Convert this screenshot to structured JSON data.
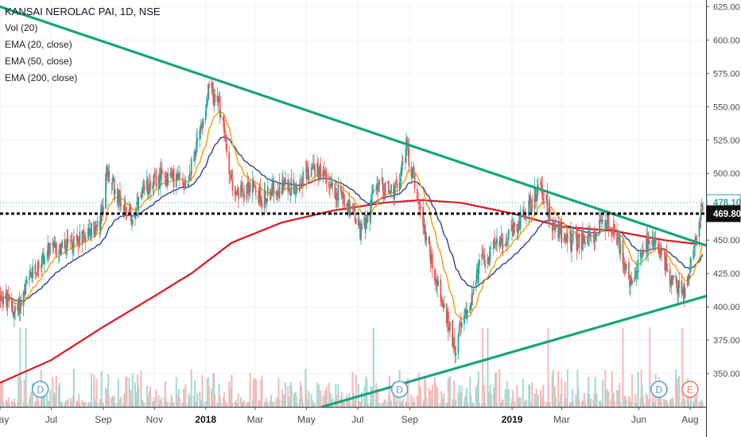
{
  "legend": {
    "title": "KANSAI NEROLAC PAI, 1D, NSE",
    "studies": [
      "Vol (20)",
      "EMA (20, close)",
      "EMA (50, close)",
      "EMA (200, close)"
    ]
  },
  "colors": {
    "up": "#26a69a",
    "down": "#ef5350",
    "vol_up": "#a7d8d2",
    "vol_down": "#f5b8b6",
    "ema20": "#f59b00",
    "ema50": "#2e3f8f",
    "ema200": "#e0141e",
    "trendline": "#17a57b",
    "grid": "#eef0f3",
    "axis_text": "#4a4a4a",
    "last_price_bg": "#ffffff",
    "horizontal_line": "#000000"
  },
  "chart_data": {
    "type": "candlestick",
    "y_axis": {
      "min": 325,
      "max": 630,
      "ticks": [
        "625.00",
        "600.00",
        "575.00",
        "550.00",
        "525.00",
        "500.00",
        "475.00",
        "450.00",
        "425.00",
        "400.00",
        "375.00",
        "350.00"
      ]
    },
    "x_axis": {
      "start": "2017-05-01",
      "end": "2019-08-20",
      "ticks": [
        {
          "date": "2017-05-01",
          "label": "May",
          "bold": false
        },
        {
          "date": "2017-07-01",
          "label": "Jul",
          "bold": false
        },
        {
          "date": "2017-09-01",
          "label": "Sep",
          "bold": false
        },
        {
          "date": "2017-11-01",
          "label": "Nov",
          "bold": false
        },
        {
          "date": "2018-01-01",
          "label": "2018",
          "bold": true
        },
        {
          "date": "2018-03-01",
          "label": "Mar",
          "bold": false
        },
        {
          "date": "2018-05-01",
          "label": "May",
          "bold": false
        },
        {
          "date": "2018-07-01",
          "label": "Jul",
          "bold": false
        },
        {
          "date": "2018-09-01",
          "label": "Sep",
          "bold": false
        },
        {
          "date": "2019-01-01",
          "label": "2019",
          "bold": true
        },
        {
          "date": "2019-03-01",
          "label": "Mar",
          "bold": false
        },
        {
          "date": "2019-06-01",
          "label": "Jun",
          "bold": false
        },
        {
          "date": "2019-08-01",
          "label": "Aug",
          "bold": false
        }
      ]
    },
    "price_path": [
      [
        "2017-05-01",
        410
      ],
      [
        "2017-05-20",
        395
      ],
      [
        "2017-06-05",
        420
      ],
      [
        "2017-06-25",
        440
      ],
      [
        "2017-07-20",
        445
      ],
      [
        "2017-08-10",
        455
      ],
      [
        "2017-08-28",
        460
      ],
      [
        "2017-09-05",
        500
      ],
      [
        "2017-09-20",
        482
      ],
      [
        "2017-10-05",
        465
      ],
      [
        "2017-10-25",
        492
      ],
      [
        "2017-11-15",
        498
      ],
      [
        "2017-12-10",
        493
      ],
      [
        "2017-12-25",
        530
      ],
      [
        "2018-01-05",
        565
      ],
      [
        "2018-01-18",
        548
      ],
      [
        "2018-02-05",
        480
      ],
      [
        "2018-02-20",
        492
      ],
      [
        "2018-03-10",
        480
      ],
      [
        "2018-03-25",
        490
      ],
      [
        "2018-04-20",
        492
      ],
      [
        "2018-05-10",
        505
      ],
      [
        "2018-06-01",
        490
      ],
      [
        "2018-06-20",
        478
      ],
      [
        "2018-07-05",
        455
      ],
      [
        "2018-07-25",
        492
      ],
      [
        "2018-08-15",
        485
      ],
      [
        "2018-08-28",
        520
      ],
      [
        "2018-09-10",
        485
      ],
      [
        "2018-09-25",
        440
      ],
      [
        "2018-10-10",
        402
      ],
      [
        "2018-10-25",
        370
      ],
      [
        "2018-11-10",
        400
      ],
      [
        "2018-11-25",
        435
      ],
      [
        "2018-12-15",
        448
      ],
      [
        "2019-01-01",
        455
      ],
      [
        "2019-01-20",
        475
      ],
      [
        "2019-02-05",
        490
      ],
      [
        "2019-02-20",
        458
      ],
      [
        "2019-03-15",
        448
      ],
      [
        "2019-04-05",
        452
      ],
      [
        "2019-04-25",
        465
      ],
      [
        "2019-05-10",
        445
      ],
      [
        "2019-05-25",
        410
      ],
      [
        "2019-06-05",
        445
      ],
      [
        "2019-06-25",
        445
      ],
      [
        "2019-07-10",
        420
      ],
      [
        "2019-07-25",
        410
      ],
      [
        "2019-08-05",
        442
      ],
      [
        "2019-08-12",
        460
      ],
      [
        "2019-08-16",
        475
      ]
    ],
    "ema200_path": [
      [
        "2017-05-01",
        343
      ],
      [
        "2017-07-01",
        360
      ],
      [
        "2017-09-01",
        385
      ],
      [
        "2017-11-01",
        408
      ],
      [
        "2017-12-15",
        425
      ],
      [
        "2018-02-01",
        448
      ],
      [
        "2018-04-01",
        463
      ],
      [
        "2018-06-01",
        472
      ],
      [
        "2018-08-01",
        478
      ],
      [
        "2018-09-15",
        480
      ],
      [
        "2018-11-01",
        478
      ],
      [
        "2019-01-01",
        470
      ],
      [
        "2019-03-01",
        460
      ],
      [
        "2019-05-01",
        457
      ],
      [
        "2019-07-01",
        450
      ],
      [
        "2019-08-10",
        447
      ]
    ],
    "trendlines": [
      {
        "from": [
          "2017-05-01",
          625
        ],
        "to": [
          "2019-08-20",
          446
        ]
      },
      {
        "from": [
          "2018-05-20",
          325
        ],
        "to": [
          "2019-08-20",
          408
        ]
      }
    ],
    "horizontal_line": 469.8,
    "last_price_marker": 478.1,
    "price_labels": [
      "478.10",
      "469.80"
    ],
    "event_markers": [
      {
        "date": "2017-06-18",
        "label": "D"
      },
      {
        "date": "2018-08-20",
        "label": "D"
      },
      {
        "date": "2019-06-25",
        "label": "D"
      },
      {
        "date": "2019-08-01",
        "label": "E"
      }
    ]
  }
}
